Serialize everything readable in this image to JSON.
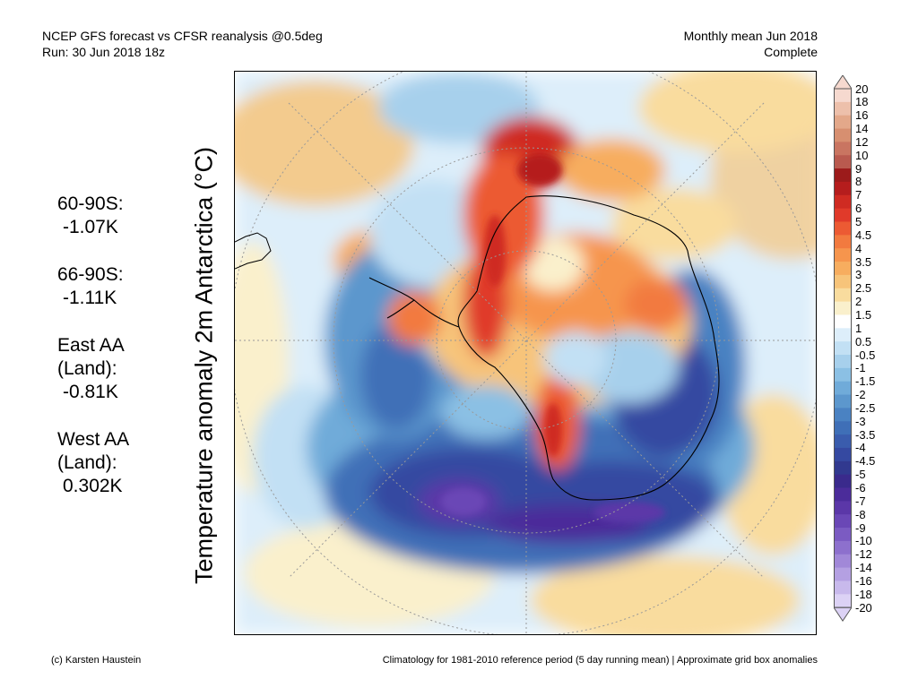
{
  "header": {
    "title_line1": "NCEP GFS forecast vs CFSR reanalysis @0.5deg",
    "title_line2": "Run: 30 Jun 2018 18z",
    "right_line1": "Monthly mean Jun 2018",
    "right_line2": "Complete"
  },
  "ylabel": "Temperature anomaly 2m Antarctica (°C)",
  "stats": [
    {
      "label": "60-90S:",
      "value": "-1.07K"
    },
    {
      "label": "66-90S:",
      "value": "-1.11K"
    },
    {
      "label": "East AA\n(Land):",
      "value": "-0.81K"
    },
    {
      "label": "West AA\n(Land):",
      "value": "0.302K"
    }
  ],
  "colorbar": {
    "labels": [
      "20",
      "18",
      "16",
      "14",
      "12",
      "10",
      "9",
      "8",
      "7",
      "6",
      "5",
      "4.5",
      "4",
      "3.5",
      "3",
      "2.5",
      "2",
      "1.5",
      "1",
      "0.5",
      "-0.5",
      "-1",
      "-1.5",
      "-2",
      "-2.5",
      "-3",
      "-3.5",
      "-4",
      "-4.5",
      "-5",
      "-6",
      "-7",
      "-8",
      "-9",
      "-10",
      "-12",
      "-14",
      "-16",
      "-18",
      "-20"
    ],
    "colors": [
      "#f6d9cf",
      "#edc0ab",
      "#e3a88a",
      "#d78f70",
      "#c97561",
      "#b95a4f",
      "#9c1b1b",
      "#b51d1d",
      "#cf2b22",
      "#e03a2a",
      "#ec5a33",
      "#f27a3f",
      "#f6954d",
      "#f7ad5f",
      "#f7c47a",
      "#f9dc9e",
      "#faf0cc",
      "#ffffff",
      "#ddeefa",
      "#c2e0f4",
      "#a7d0ec",
      "#8bc0e4",
      "#70abd9",
      "#5c97cd",
      "#4a82c2",
      "#3f6fb7",
      "#3a5cad",
      "#3549a1",
      "#31398f",
      "#3a2a8c",
      "#4b2c9a",
      "#5b37a8",
      "#6a47b6",
      "#7b5bc2",
      "#8d70cd",
      "#a188d8",
      "#b4a0e2",
      "#c8b9ec",
      "#dcd2f5"
    ]
  },
  "map_colors": {
    "warm_light": "#f7c47a",
    "warm_orange": "#ec5a33",
    "warm_red": "#cf2b22",
    "neutral": "#faf0cc",
    "cool_light": "#c2e0f4",
    "cool_mid": "#70abd9",
    "cool_deep": "#3549a1",
    "cool_purple": "#5b37a8"
  },
  "footer": {
    "left": "(c) Karsten Haustein",
    "right": "Climatology for 1981-2010 reference period (5 day running mean) | Approximate grid box anomalies"
  }
}
